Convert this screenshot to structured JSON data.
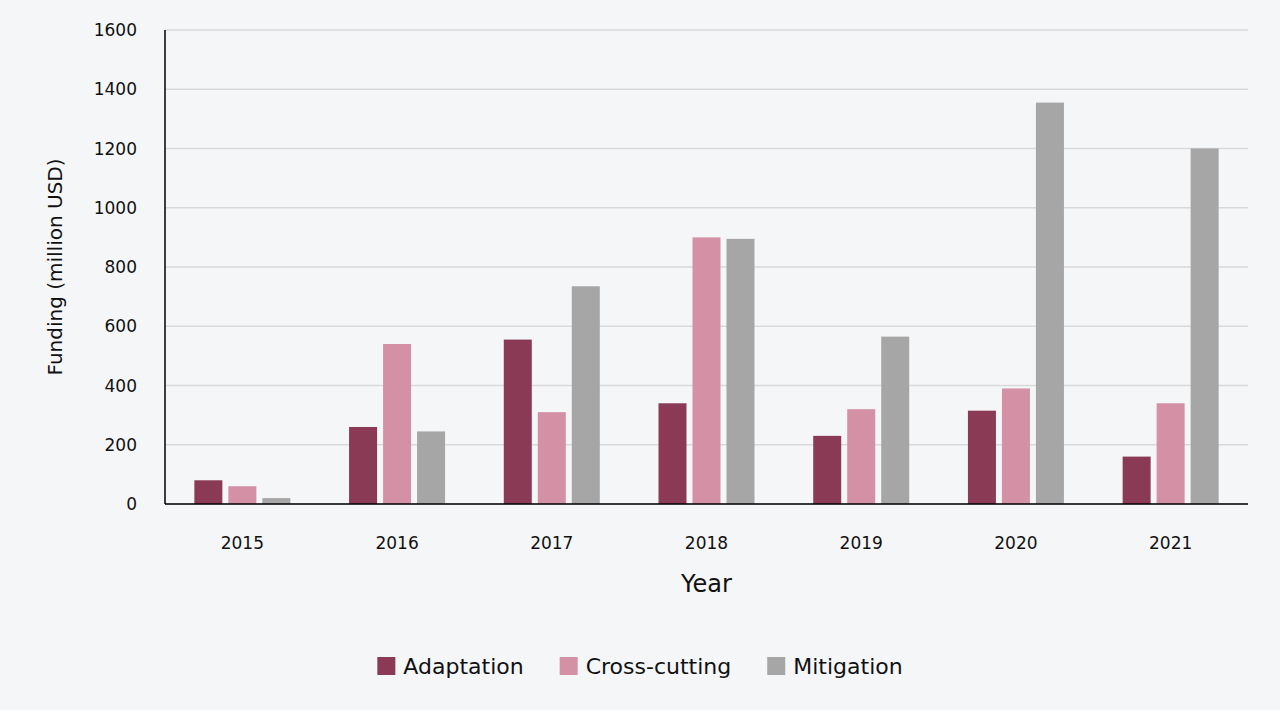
{
  "chart_data": {
    "type": "bar",
    "categories": [
      "2015",
      "2016",
      "2017",
      "2018",
      "2019",
      "2020",
      "2021"
    ],
    "series": [
      {
        "name": "Adaptation",
        "color": "#8b3a56",
        "values": [
          80,
          260,
          555,
          340,
          230,
          315,
          160
        ]
      },
      {
        "name": "Cross-cutting",
        "color": "#d490a5",
        "values": [
          60,
          540,
          310,
          900,
          320,
          390,
          340
        ]
      },
      {
        "name": "Mitigation",
        "color": "#a6a6a6",
        "values": [
          20,
          245,
          735,
          895,
          565,
          1355,
          1200
        ]
      }
    ],
    "x_label": "Year",
    "y_label": "Funding (million USD)",
    "ylim": [
      0,
      1600
    ],
    "yticks": [
      0,
      200,
      400,
      600,
      800,
      1000,
      1200,
      1400,
      1600
    ],
    "grid": true,
    "legend": "bottom"
  }
}
